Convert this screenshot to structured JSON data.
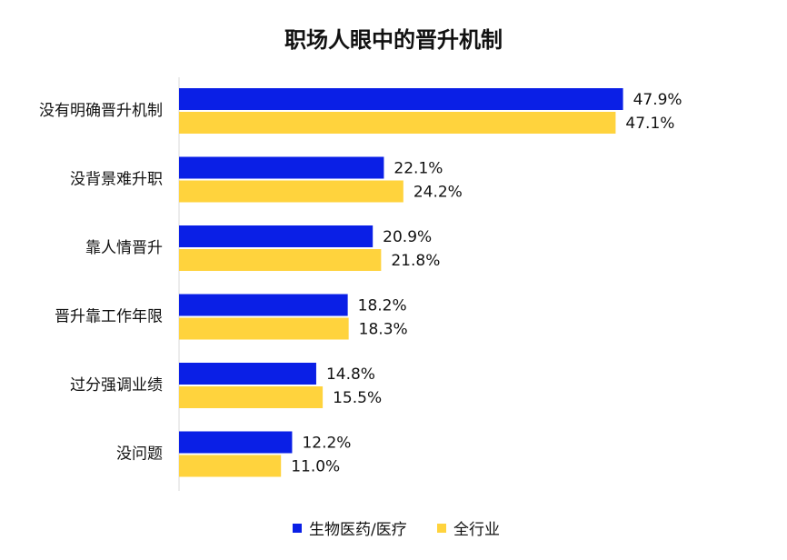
{
  "chart_data": {
    "type": "bar",
    "orientation": "horizontal",
    "title": "职场人眼中的晋升机制",
    "categories": [
      "没有明确晋升机制",
      "没背景难升职",
      "靠人情晋升",
      "晋升靠工作年限",
      "过分强调业绩",
      "没问题"
    ],
    "series": [
      {
        "name": "生物医药/医疗",
        "color": "#0a1fe6",
        "values": [
          47.9,
          22.1,
          20.9,
          18.2,
          14.8,
          12.2
        ],
        "labels": [
          "47.9%",
          "22.1%",
          "20.9%",
          "18.2%",
          "14.8%",
          "12.2%"
        ]
      },
      {
        "name": "全行业",
        "color": "#ffd33d",
        "values": [
          47.1,
          24.2,
          21.8,
          18.3,
          15.5,
          11.0
        ],
        "labels": [
          "47.1%",
          "24.2%",
          "21.8%",
          "18.3%",
          "15.5%",
          "11.0%"
        ]
      }
    ],
    "xlim": [
      0,
      50
    ],
    "grid": false,
    "legend_position": "bottom"
  }
}
